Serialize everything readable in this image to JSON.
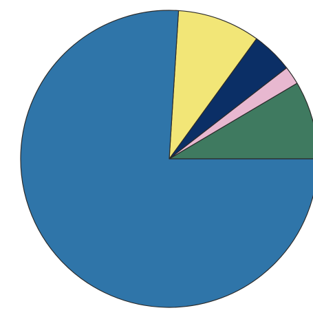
{
  "chart_data": {
    "type": "pie",
    "title": "",
    "start_angle_deg": 0,
    "direction": "counterclockwise",
    "slices": [
      {
        "value": 8.5,
        "color": "#3f7a60"
      },
      {
        "value": 2.0,
        "color": "#e8b8d0"
      },
      {
        "value": 4.5,
        "color": "#0b2f66"
      },
      {
        "value": 9.0,
        "color": "#f2e677"
      },
      {
        "value": 76.0,
        "color": "#2f75a9"
      }
    ],
    "clockwise_from_right_order": [
      3,
      4,
      0,
      1,
      2
    ]
  }
}
